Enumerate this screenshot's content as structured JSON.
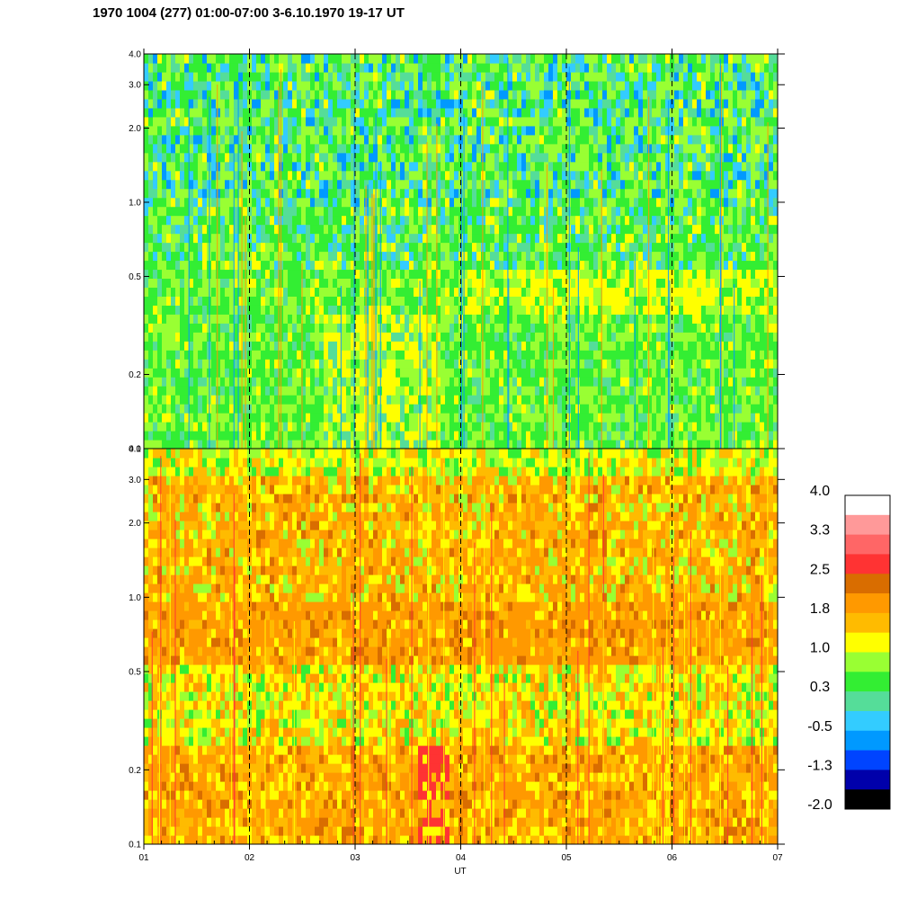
{
  "title": "1970 1004 (277) 01:00-07:00 3-6.10.1970  19-17 UT",
  "chart_data": {
    "type": "heatmap",
    "title": "1970 1004 (277) 01:00-07:00 3-6.10.1970  19-17 UT",
    "xlabel": "UT",
    "x_ticks": [
      "01",
      "02",
      "03",
      "04",
      "05",
      "06",
      "07"
    ],
    "xlim": [
      1,
      7
    ],
    "y_scale": "log",
    "panels": [
      {
        "name": "upper",
        "ylim": [
          0.1,
          4.0
        ],
        "y_ticks": [
          "0.1",
          "0.2",
          "0.5",
          "1.0",
          "2.0",
          "3.0",
          "4.0"
        ],
        "dominant_levels": "green (0.3) to yellow (1.0), blue/cyan patches above 1.0 MHz, yellow band near 0.5 after 04 UT"
      },
      {
        "name": "lower",
        "ylim": [
          0.1,
          4.0
        ],
        "y_ticks": [
          "0.1",
          "0.2",
          "0.5",
          "1.0",
          "2.0",
          "3.0",
          "4.0"
        ],
        "dominant_levels": "orange (1.8) to yellow (1.0), strong orange band near 0.6-0.8, red streak near 03:45 UT"
      }
    ],
    "colorbar": {
      "labels": [
        "4.0",
        "3.3",
        "2.5",
        "1.8",
        "1.0",
        "0.3",
        "-0.5",
        "-1.3",
        "-2.0"
      ],
      "colors": [
        "#ffffff",
        "#ff9999",
        "#ff6666",
        "#ff3333",
        "#d96d00",
        "#ff9900",
        "#ffbb00",
        "#ffff00",
        "#99ff33",
        "#33ee33",
        "#55dd99",
        "#33ccff",
        "#0099ff",
        "#0044ff",
        "#0000aa",
        "#000000"
      ]
    }
  }
}
